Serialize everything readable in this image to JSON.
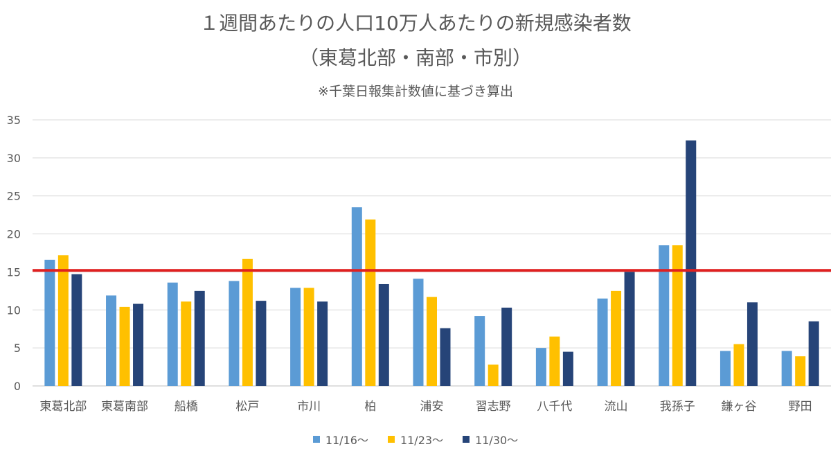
{
  "chart_data": {
    "type": "bar",
    "title": "１週間あたりの人口10万人あたりの新規感染者数",
    "subtitle": "（東葛北部・南部・市別）",
    "note": "※千葉日報集計数値に基づき算出",
    "categories": [
      "東葛北部",
      "東葛南部",
      "船橋",
      "松戸",
      "市川",
      "柏",
      "浦安",
      "習志野",
      "八千代",
      "流山",
      "我孫子",
      "鎌ヶ谷",
      "野田"
    ],
    "series": [
      {
        "name": "11/16～",
        "color": "#5b9bd5",
        "values": [
          16.6,
          11.9,
          13.6,
          13.8,
          12.9,
          23.5,
          14.1,
          9.2,
          5.0,
          11.5,
          18.5,
          4.6,
          4.6
        ]
      },
      {
        "name": "11/23～",
        "color": "#ffc000",
        "values": [
          17.2,
          10.4,
          11.1,
          16.7,
          12.9,
          21.9,
          11.7,
          2.8,
          6.5,
          12.5,
          18.5,
          5.5,
          3.9
        ]
      },
      {
        "name": "11/30～",
        "color": "#264478",
        "values": [
          14.7,
          10.8,
          12.5,
          11.2,
          11.1,
          13.4,
          7.6,
          10.3,
          4.5,
          15.0,
          32.3,
          11.0,
          8.5
        ]
      }
    ],
    "reference_line": {
      "value": 15.2,
      "color": "#e02020"
    },
    "ylim": [
      0,
      35
    ],
    "yticks": [
      "0",
      "5",
      "10",
      "15",
      "20",
      "25",
      "30",
      "35"
    ],
    "grid": true,
    "legend_position": "bottom"
  }
}
